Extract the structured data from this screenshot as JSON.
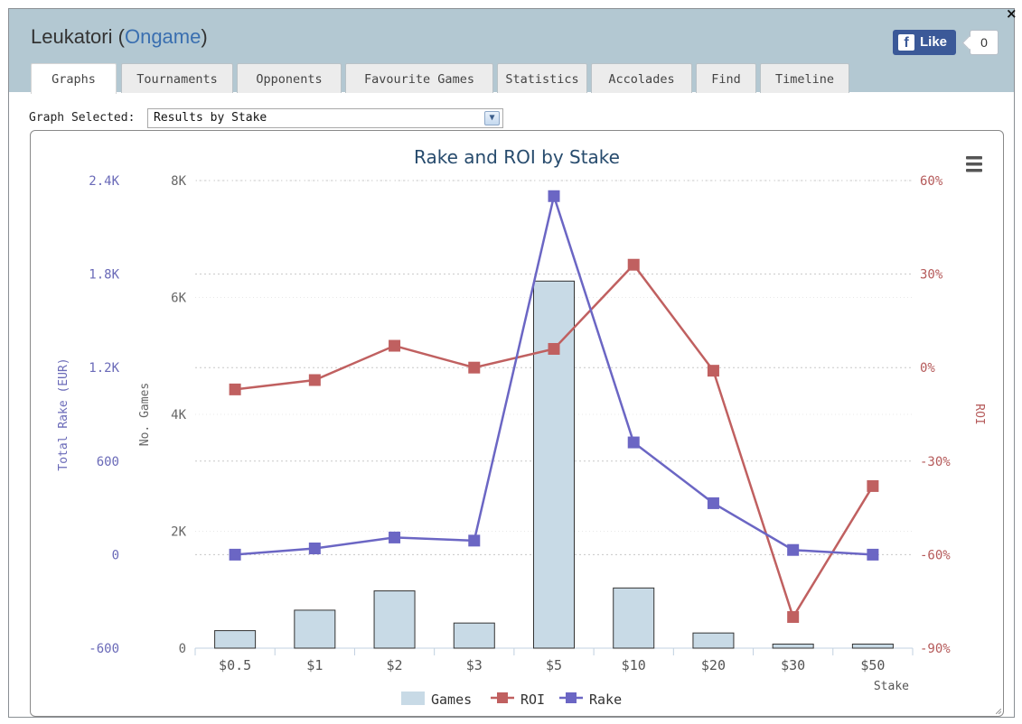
{
  "window": {
    "player": "Leukatori",
    "site": "Ongame",
    "close_glyph": "×",
    "like_label": "Like",
    "like_count": "0",
    "fb_glyph": "f"
  },
  "tabs": [
    {
      "label": "Graphs",
      "active": true
    },
    {
      "label": "Tournaments"
    },
    {
      "label": "Opponents"
    },
    {
      "label": "Favourite Games"
    },
    {
      "label": "Statistics"
    },
    {
      "label": "Accolades"
    },
    {
      "label": "Find"
    },
    {
      "label": "Timeline"
    }
  ],
  "graph_selector": {
    "label": "Graph Selected:",
    "value": "Results by Stake"
  },
  "chart_data": {
    "type": "bar",
    "title": "Rake and ROI by Stake",
    "xlabel": "Stake",
    "categories": [
      "$0.5",
      "$1",
      "$2",
      "$3",
      "$5",
      "$10",
      "$20",
      "$30",
      "$50"
    ],
    "axes": {
      "games": {
        "label": "No. Games",
        "min": 0,
        "max": 8000,
        "ticks": [
          "0",
          "2K",
          "4K",
          "6K",
          "8K"
        ],
        "color": "#666666"
      },
      "rake": {
        "label": "Total Rake (EUR)",
        "min": -600,
        "max": 2400,
        "ticks": [
          "-600",
          "0",
          "600",
          "1.2K",
          "1.8K",
          "2.4K"
        ],
        "color": "#6a6ab8"
      },
      "roi": {
        "label": "ROI",
        "min": -90,
        "max": 60,
        "ticks": [
          "-90%",
          "-60%",
          "-30%",
          "0%",
          "30%",
          "60%"
        ],
        "color": "#b55a5a"
      }
    },
    "series": [
      {
        "name": "Games",
        "type": "bar",
        "axis": "games",
        "color": "#c8dae6",
        "values": [
          300,
          650,
          980,
          430,
          6280,
          1030,
          260,
          70,
          70
        ]
      },
      {
        "name": "ROI",
        "type": "line",
        "axis": "roi",
        "color": "#c06060",
        "values": [
          -7,
          -4,
          7,
          0,
          6,
          33,
          -1,
          -80,
          -38
        ]
      },
      {
        "name": "Rake",
        "type": "line",
        "axis": "rake",
        "color": "#6b66c4",
        "values": [
          0,
          40,
          110,
          90,
          2300,
          720,
          330,
          30,
          0
        ]
      }
    ],
    "grid": true,
    "legend_position": "bottom-center",
    "menu_icon": "hamburger-menu-icon"
  }
}
